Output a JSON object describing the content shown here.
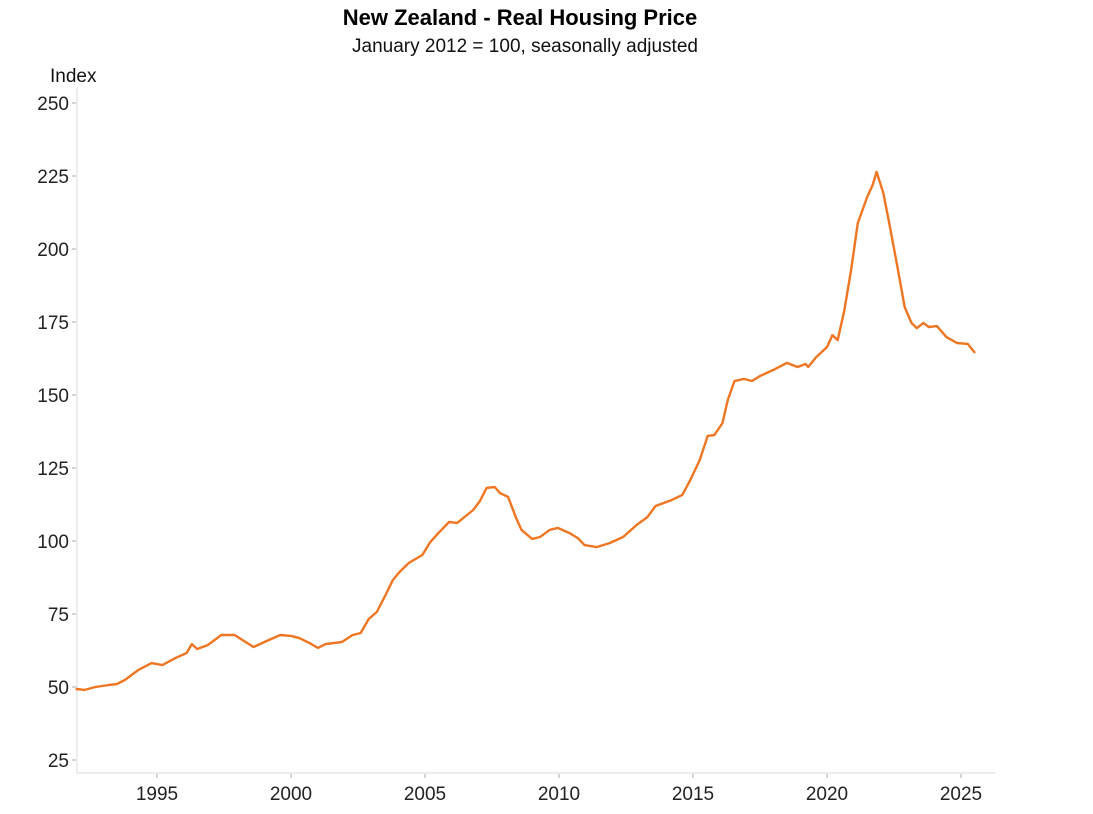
{
  "chart_data": {
    "type": "line",
    "title": "New Zealand - Real Housing Price",
    "subtitle": "January 2012 = 100, seasonally adjusted",
    "xlabel": "",
    "ylabel": "Index",
    "xlim": [
      1992.0,
      2026.3
    ],
    "ylim": [
      22,
      252
    ],
    "x_ticks": [
      1995,
      2000,
      2005,
      2010,
      2015,
      2020,
      2025
    ],
    "x_tick_labels": [
      "1995",
      "2000",
      "2005",
      "2010",
      "2015",
      "2020",
      "2025"
    ],
    "y_ticks": [
      25,
      50,
      75,
      100,
      125,
      150,
      175,
      200,
      225,
      250
    ],
    "y_tick_labels": [
      "25",
      "50",
      "75",
      "100",
      "125",
      "150",
      "175",
      "200",
      "225",
      "250"
    ],
    "grid": false,
    "legend": "none",
    "series": [
      {
        "name": "Real Housing Price",
        "color": "#EE7623",
        "x": [
          1992.0,
          1992.3,
          1992.7,
          1993.2,
          1993.5,
          1993.8,
          1994.3,
          1994.8,
          1995.2,
          1995.7,
          1996.1,
          1996.3,
          1996.5,
          1996.9,
          1997.4,
          1997.9,
          1998.2,
          1998.6,
          1999.1,
          1999.6,
          2000.0,
          2000.3,
          2000.7,
          2001.0,
          2001.3,
          2001.9,
          2002.3,
          2002.6,
          2002.9,
          2003.2,
          2003.5,
          2003.8,
          2004.05,
          2004.4,
          2004.9,
          2005.2,
          2005.5,
          2005.9,
          2006.2,
          2006.8,
          2007.05,
          2007.3,
          2007.6,
          2007.8,
          2008.1,
          2008.4,
          2008.6,
          2009.0,
          2009.3,
          2009.65,
          2009.95,
          2010.4,
          2010.7,
          2010.95,
          2011.4,
          2011.9,
          2012.4,
          2012.9,
          2013.3,
          2013.6,
          2014.2,
          2014.6,
          2014.9,
          2015.25,
          2015.55,
          2015.8,
          2016.1,
          2016.3,
          2016.55,
          2016.9,
          2017.2,
          2017.5,
          2018.0,
          2018.5,
          2018.9,
          2019.2,
          2019.3,
          2019.6,
          2020.0,
          2020.2,
          2020.4,
          2020.65,
          2020.9,
          2021.15,
          2021.5,
          2021.7,
          2021.85,
          2022.1,
          2022.35,
          2022.6,
          2022.9,
          2023.15,
          2023.35,
          2023.6,
          2023.8,
          2024.1,
          2024.45,
          2024.85,
          2025.25,
          2025.5
        ],
        "values": [
          49.3,
          49.0,
          50.0,
          50.7,
          51.0,
          52.4,
          55.8,
          58.2,
          57.5,
          60.0,
          61.6,
          64.7,
          63.0,
          64.4,
          67.8,
          67.8,
          66.0,
          63.7,
          65.8,
          67.8,
          67.5,
          66.8,
          65.0,
          63.4,
          64.7,
          65.4,
          67.8,
          68.5,
          73.3,
          75.7,
          81.0,
          86.6,
          89.4,
          92.5,
          95.2,
          99.7,
          102.7,
          106.5,
          106.2,
          110.6,
          113.7,
          118.2,
          118.5,
          116.4,
          115.1,
          107.9,
          103.8,
          100.7,
          101.4,
          103.8,
          104.5,
          102.7,
          101.0,
          98.6,
          97.9,
          99.3,
          101.4,
          105.5,
          108.2,
          112.0,
          114.0,
          115.8,
          120.9,
          127.7,
          136.0,
          136.3,
          140.4,
          148.3,
          154.8,
          155.5,
          154.8,
          156.5,
          158.6,
          161.0,
          159.6,
          160.6,
          159.6,
          163.0,
          166.4,
          170.5,
          168.8,
          179.1,
          192.8,
          208.9,
          217.8,
          221.9,
          226.4,
          219.2,
          207.5,
          195.2,
          180.1,
          174.7,
          172.9,
          174.7,
          173.3,
          173.6,
          169.9,
          167.8,
          167.5,
          164.7
        ]
      }
    ]
  }
}
